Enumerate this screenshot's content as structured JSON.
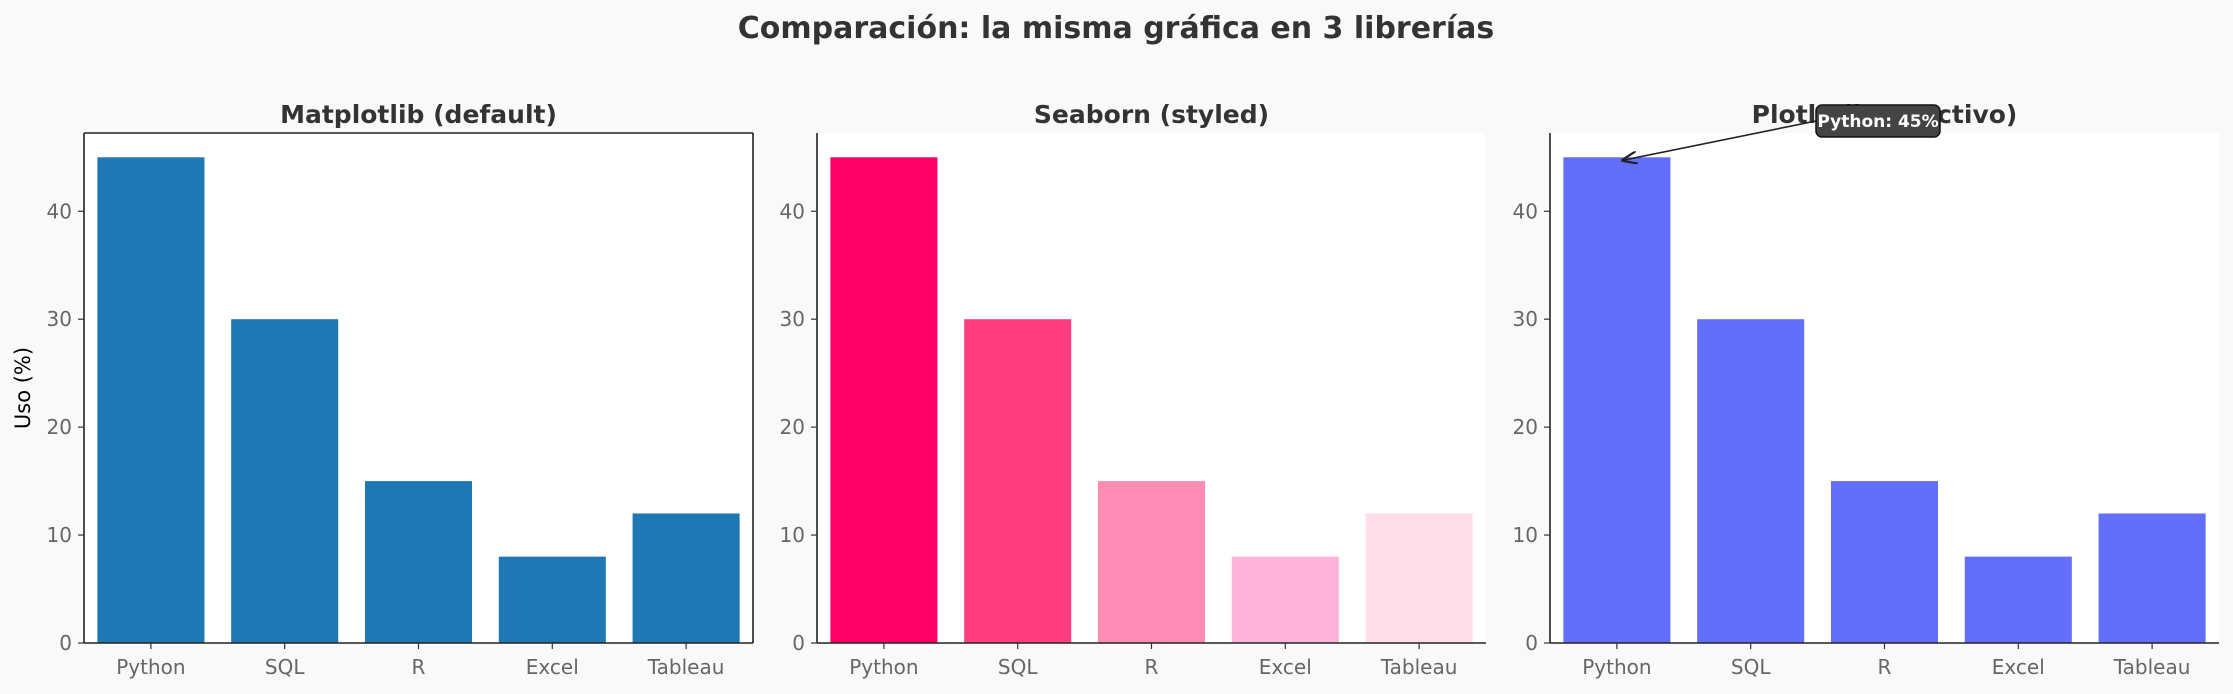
{
  "figure": {
    "title": "Comparación: la misma gráfica en 3 librerías",
    "background": "#f9f9f9"
  },
  "chart_data": [
    {
      "type": "bar",
      "title": "Matplotlib (default)",
      "categories": [
        "Python",
        "SQL",
        "R",
        "Excel",
        "Tableau"
      ],
      "values": [
        45,
        30,
        15,
        8,
        12
      ],
      "ylabel": "Uso (%)",
      "xlabel": "",
      "ylim": [
        0,
        47.25
      ],
      "yticks": [
        0,
        10,
        20,
        30,
        40
      ],
      "colors": [
        "#1f77b4",
        "#1f77b4",
        "#1f77b4",
        "#1f77b4",
        "#1f77b4"
      ],
      "grid": false,
      "frame": "full"
    },
    {
      "type": "bar",
      "title": "Seaborn (styled)",
      "categories": [
        "Python",
        "SQL",
        "R",
        "Excel",
        "Tableau"
      ],
      "values": [
        45,
        30,
        15,
        8,
        12
      ],
      "ylabel": "",
      "xlabel": "",
      "ylim": [
        0,
        47.25
      ],
      "yticks": [
        0,
        10,
        20,
        30,
        40
      ],
      "colors": [
        "#ff0066",
        "#ff3d7f",
        "#ff8cb4",
        "#ffb3d9",
        "#ffdde9"
      ],
      "grid": false,
      "frame": "left-bottom"
    },
    {
      "type": "bar",
      "title": "Plotly (interactivo)",
      "categories": [
        "Python",
        "SQL",
        "R",
        "Excel",
        "Tableau"
      ],
      "values": [
        45,
        30,
        15,
        8,
        12
      ],
      "ylabel": "",
      "xlabel": "",
      "ylim": [
        0,
        47.25
      ],
      "yticks": [
        0,
        10,
        20,
        30,
        40
      ],
      "colors": [
        "#636efa",
        "#636efa",
        "#636efa",
        "#636efa",
        "#636efa"
      ],
      "grid": false,
      "frame": "left-bottom",
      "annotation": {
        "text": "Python: 45%",
        "category": "Python",
        "value": 45
      }
    }
  ]
}
